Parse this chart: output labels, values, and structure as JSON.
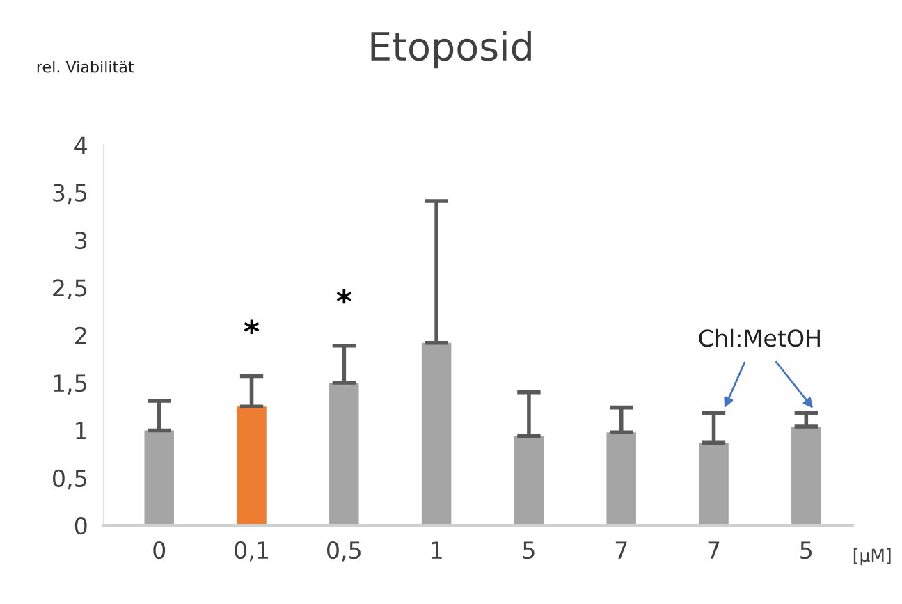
{
  "chart_data": {
    "type": "bar",
    "title": "Etoposid",
    "ylabel": "rel. Viabilität",
    "xlabel": "[µM]",
    "categories": [
      "0",
      "0,1",
      "0,5",
      "1",
      "5",
      "7",
      "7",
      "5"
    ],
    "values": [
      1.0,
      1.25,
      1.5,
      1.92,
      0.94,
      0.98,
      0.87,
      1.04
    ],
    "colors": [
      "#a5a5a5",
      "#ed7d31",
      "#a5a5a5",
      "#a5a5a5",
      "#a5a5a5",
      "#a5a5a5",
      "#a5a5a5",
      "#a5a5a5"
    ],
    "errors": [
      [
        1.0,
        1.31
      ],
      [
        1.25,
        1.57
      ],
      [
        1.5,
        1.89
      ],
      [
        1.92,
        3.41
      ],
      [
        0.94,
        1.4
      ],
      [
        0.98,
        1.24
      ],
      [
        0.87,
        1.18
      ],
      [
        1.04,
        1.18
      ]
    ],
    "ylim": [
      0,
      4
    ],
    "yticks": [
      0,
      {
        "value": 0.5,
        "label": "0,5"
      },
      1,
      {
        "value": 1.5,
        "label": "1,5"
      },
      2,
      {
        "value": 2.5,
        "label": "2,5"
      },
      3,
      {
        "value": 3.5,
        "label": "3,5"
      },
      4
    ],
    "annotations": [
      {
        "text": "*",
        "x": "0,1",
        "y": 1.57
      },
      {
        "text": "*",
        "x": "0,5",
        "y": 1.89
      },
      "Chl:MetOH"
    ],
    "grid": false
  }
}
